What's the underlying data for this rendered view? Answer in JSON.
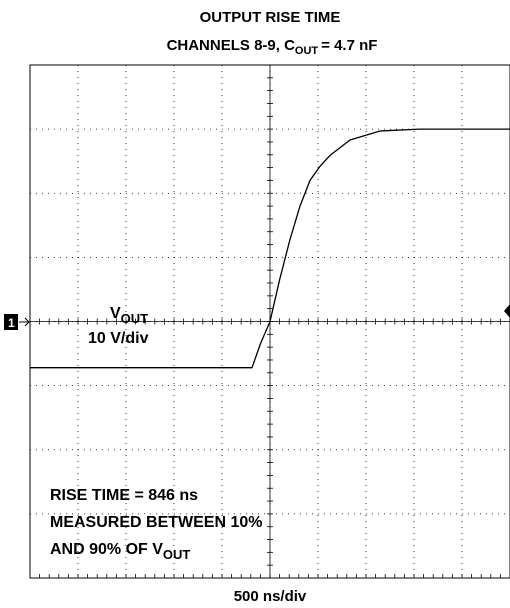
{
  "chart_data": {
    "type": "line",
    "title": "OUTPUT RISE TIME",
    "subtitle": [
      "CHANNELS 8-9, C",
      "OUT",
      "= 4.7 nF"
    ],
    "x_label": "500 ns/div",
    "channel_marker": "1",
    "annotations": {
      "trace_name": [
        "V",
        "OUT"
      ],
      "scale": "10 V/div",
      "measurement": [
        "RISE TIME = 846 ns",
        "MEASURED BETWEEN 10%",
        "AND 90% OF V",
        "OUT"
      ]
    },
    "x": [
      0,
      2312,
      2400,
      2500,
      2600,
      2708,
      2812,
      2917,
      3021,
      3125,
      3333,
      3646,
      4062,
      5000
    ],
    "values": [
      -7.2,
      -7.2,
      -3.5,
      0,
      6.5,
      12.8,
      18,
      22,
      24.2,
      25.9,
      28.3,
      29.7,
      30,
      30
    ],
    "color": "#000000",
    "xlim": [
      0,
      5000
    ],
    "ylim": [
      -40,
      40
    ]
  }
}
